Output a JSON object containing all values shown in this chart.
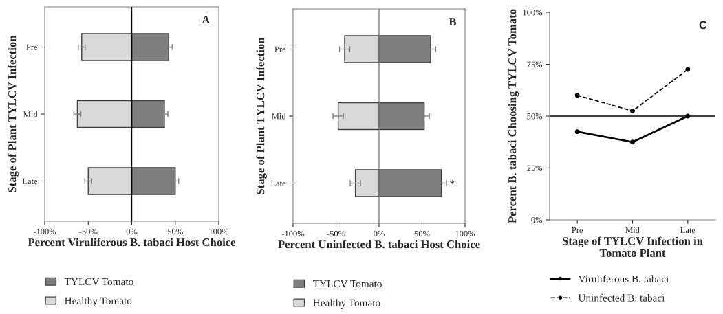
{
  "chart_data": [
    {
      "type": "bar",
      "orientation": "horizontal",
      "stacked": true,
      "title": "A",
      "xlabel": "Percent Viruliferous B. tabaci Host Choice",
      "ylabel": "Stage of Plant TYLCV Infection",
      "categories": [
        "Pre",
        "Mid",
        "Late"
      ],
      "series": [
        {
          "name": "TYLCV Tomato",
          "color": "#7f7f7f",
          "values": [
            42.5,
            37.5,
            50
          ],
          "errors": [
            4,
            4,
            4
          ]
        },
        {
          "name": "Healthy Tomato",
          "color": "#d9d9d9",
          "values": [
            -57.5,
            -62.5,
            -50
          ],
          "errors": [
            4,
            4,
            4
          ]
        }
      ],
      "xlim": [
        -100,
        100
      ],
      "xticks": [
        {
          "value": -100,
          "label": "-100%"
        },
        {
          "value": -50,
          "label": "-50%"
        },
        {
          "value": 0,
          "label": "0%"
        },
        {
          "value": 50,
          "label": "50%"
        },
        {
          "value": 100,
          "label": "100%"
        }
      ],
      "ref_lines": [
        {
          "axis": "x",
          "value": 0,
          "color": "#000000"
        }
      ],
      "grid": false,
      "legend": "bottom"
    },
    {
      "type": "bar",
      "orientation": "horizontal",
      "stacked": true,
      "title": "B",
      "xlabel": "Percent Uninfected B. tabaci Host Choice",
      "ylabel": "Stage of Plant TYLCV Infection",
      "categories": [
        "Pre",
        "Mid",
        "Late"
      ],
      "series": [
        {
          "name": "TYLCV Tomato",
          "color": "#7f7f7f",
          "values": [
            60,
            52.5,
            72.5
          ],
          "errors": [
            6,
            6,
            6
          ]
        },
        {
          "name": "Healthy Tomato",
          "color": "#d9d9d9",
          "values": [
            -40,
            -47.5,
            -27.5
          ],
          "errors": [
            6,
            6,
            6
          ]
        }
      ],
      "xlim": [
        -100,
        100
      ],
      "xticks": [
        {
          "value": -100,
          "label": "-100%"
        },
        {
          "value": -50,
          "label": "-50%"
        },
        {
          "value": 0,
          "label": "0%"
        },
        {
          "value": 50,
          "label": "50%"
        },
        {
          "value": 100,
          "label": "100%"
        }
      ],
      "ref_lines": [
        {
          "axis": "x",
          "value": 0,
          "color": "#7f7f7f"
        }
      ],
      "annotations": [
        "*"
      ],
      "grid": false,
      "legend": "bottom"
    },
    {
      "type": "line",
      "title": "C",
      "xlabel": "Stage of TYLCV Infection in Tomato Plant",
      "ylabel": "Percent B. tabaci Choosing TYLCV Tomato",
      "categories": [
        "Pre",
        "Mid",
        "Late"
      ],
      "series": [
        {
          "name": "Viruliferous B. tabaci",
          "color": "#000000",
          "values": [
            42.5,
            37.5,
            50
          ],
          "line_style": "solid"
        },
        {
          "name": "Uninfected B. tabaci",
          "color": "#000000",
          "values": [
            60,
            52.5,
            72.5
          ],
          "line_style": "dashed"
        }
      ],
      "ylim": [
        0,
        100
      ],
      "yticks": [
        {
          "value": 0,
          "label": "0%"
        },
        {
          "value": 25,
          "label": "25%"
        },
        {
          "value": 50,
          "label": "50%"
        },
        {
          "value": 75,
          "label": "75%"
        },
        {
          "value": 100,
          "label": "100%"
        }
      ],
      "ref_lines": [
        {
          "axis": "y",
          "value": 50,
          "color": "#000000"
        }
      ],
      "marker": "circle",
      "grid": false,
      "legend": "bottom"
    }
  ]
}
